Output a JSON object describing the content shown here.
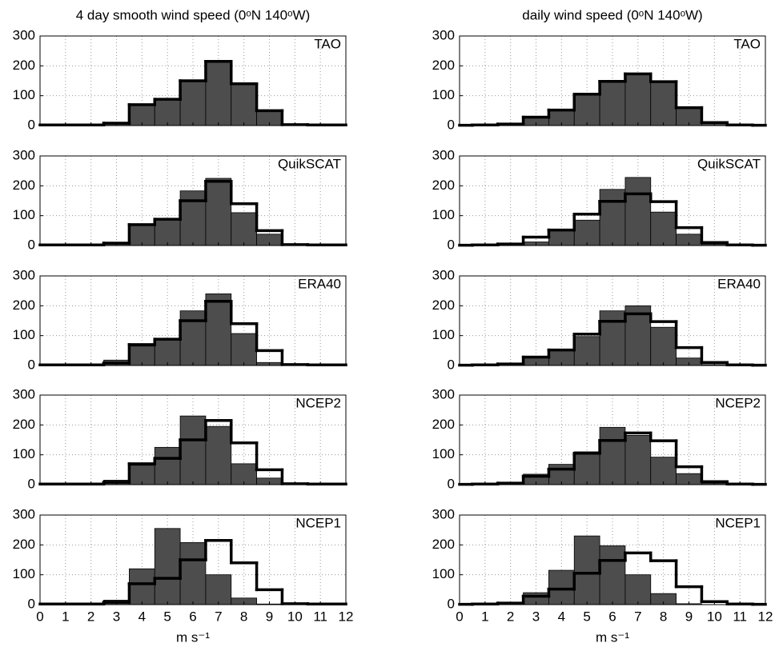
{
  "chart_data": [
    {
      "type": "histogram",
      "title": "4 day smooth wind speed (0ᵒN 140ᵒW)",
      "label": "TAO",
      "bins": [
        0,
        0.5,
        1.5,
        2.5,
        3.5,
        4.5,
        5.5,
        6.5,
        7.5,
        8.5,
        9.5,
        10.5,
        11.5,
        12
      ],
      "series": [
        {
          "style": "fill",
          "color": "#4d4d4d",
          "values": [
            2,
            2,
            2,
            8,
            70,
            88,
            150,
            215,
            140,
            50,
            3,
            2,
            2
          ]
        },
        {
          "style": "step",
          "color": "#000000",
          "values": [
            2,
            2,
            2,
            8,
            70,
            88,
            150,
            215,
            140,
            50,
            3,
            2,
            2
          ]
        }
      ],
      "xlim": [
        0,
        12
      ],
      "ylim": [
        0,
        300
      ],
      "xticks": [
        0,
        1,
        2,
        3,
        4,
        5,
        6,
        7,
        8,
        9,
        10,
        11,
        12
      ],
      "yticks": [
        0,
        100,
        200,
        300
      ],
      "grid": true,
      "xtick_labels": false
    },
    {
      "type": "histogram",
      "title": "daily wind speed (0ᵒN 140ᵒW)",
      "label": "TAO",
      "bins": [
        0,
        0.5,
        1.5,
        2.5,
        3.5,
        4.5,
        5.5,
        6.5,
        7.5,
        8.5,
        9.5,
        10.5,
        11.5,
        12
      ],
      "series": [
        {
          "style": "fill",
          "color": "#4d4d4d",
          "values": [
            1,
            2,
            5,
            28,
            52,
            105,
            148,
            173,
            147,
            60,
            10,
            2,
            1
          ]
        },
        {
          "style": "step",
          "color": "#000000",
          "values": [
            1,
            2,
            5,
            28,
            52,
            105,
            148,
            173,
            147,
            60,
            10,
            2,
            1
          ]
        }
      ],
      "xlim": [
        0,
        12
      ],
      "ylim": [
        0,
        300
      ],
      "xticks": [
        0,
        1,
        2,
        3,
        4,
        5,
        6,
        7,
        8,
        9,
        10,
        11,
        12
      ],
      "yticks": [
        0,
        100,
        200,
        300
      ],
      "grid": true,
      "xtick_labels": false
    },
    {
      "type": "histogram",
      "label": "QuikSCAT",
      "bins": [
        0,
        0.5,
        1.5,
        2.5,
        3.5,
        4.5,
        5.5,
        6.5,
        7.5,
        8.5,
        9.5,
        10.5,
        11.5,
        12
      ],
      "series": [
        {
          "style": "fill",
          "color": "#4d4d4d",
          "values": [
            2,
            2,
            2,
            5,
            70,
            88,
            183,
            225,
            110,
            38,
            2,
            1,
            1
          ]
        },
        {
          "style": "step",
          "color": "#000000",
          "values": [
            2,
            2,
            2,
            8,
            70,
            88,
            150,
            215,
            140,
            50,
            3,
            2,
            2
          ]
        }
      ],
      "xlim": [
        0,
        12
      ],
      "ylim": [
        0,
        300
      ],
      "xticks": [
        0,
        1,
        2,
        3,
        4,
        5,
        6,
        7,
        8,
        9,
        10,
        11,
        12
      ],
      "yticks": [
        0,
        100,
        200,
        300
      ],
      "grid": true,
      "xtick_labels": false
    },
    {
      "type": "histogram",
      "label": "QuikSCAT",
      "bins": [
        0,
        0.5,
        1.5,
        2.5,
        3.5,
        4.5,
        5.5,
        6.5,
        7.5,
        8.5,
        9.5,
        10.5,
        11.5,
        12
      ],
      "series": [
        {
          "style": "fill",
          "color": "#4d4d4d",
          "values": [
            0,
            1,
            3,
            12,
            50,
            85,
            188,
            228,
            112,
            38,
            4,
            1,
            0
          ]
        },
        {
          "style": "step",
          "color": "#000000",
          "values": [
            1,
            2,
            5,
            28,
            52,
            105,
            148,
            173,
            147,
            60,
            10,
            2,
            1
          ]
        }
      ],
      "xlim": [
        0,
        12
      ],
      "ylim": [
        0,
        300
      ],
      "xticks": [
        0,
        1,
        2,
        3,
        4,
        5,
        6,
        7,
        8,
        9,
        10,
        11,
        12
      ],
      "yticks": [
        0,
        100,
        200,
        300
      ],
      "grid": true,
      "xtick_labels": false
    },
    {
      "type": "histogram",
      "label": "ERA40",
      "bins": [
        0,
        0.5,
        1.5,
        2.5,
        3.5,
        4.5,
        5.5,
        6.5,
        7.5,
        8.5,
        9.5,
        10.5,
        11.5,
        12
      ],
      "series": [
        {
          "style": "fill",
          "color": "#4d4d4d",
          "values": [
            1,
            1,
            1,
            18,
            65,
            88,
            183,
            240,
            107,
            10,
            1,
            1,
            1
          ]
        },
        {
          "style": "step",
          "color": "#000000",
          "values": [
            2,
            2,
            2,
            8,
            70,
            88,
            150,
            215,
            140,
            50,
            3,
            2,
            2
          ]
        }
      ],
      "xlim": [
        0,
        12
      ],
      "ylim": [
        0,
        300
      ],
      "xticks": [
        0,
        1,
        2,
        3,
        4,
        5,
        6,
        7,
        8,
        9,
        10,
        11,
        12
      ],
      "yticks": [
        0,
        100,
        200,
        300
      ],
      "grid": true,
      "xtick_labels": false
    },
    {
      "type": "histogram",
      "label": "ERA40",
      "bins": [
        0,
        0.5,
        1.5,
        2.5,
        3.5,
        4.5,
        5.5,
        6.5,
        7.5,
        8.5,
        9.5,
        10.5,
        11.5,
        12
      ],
      "series": [
        {
          "style": "fill",
          "color": "#4d4d4d",
          "values": [
            1,
            1,
            5,
            30,
            52,
            97,
            183,
            200,
            128,
            25,
            3,
            1,
            0
          ]
        },
        {
          "style": "step",
          "color": "#000000",
          "values": [
            1,
            2,
            5,
            28,
            52,
            105,
            148,
            173,
            147,
            60,
            10,
            2,
            1
          ]
        }
      ],
      "xlim": [
        0,
        12
      ],
      "ylim": [
        0,
        300
      ],
      "xticks": [
        0,
        1,
        2,
        3,
        4,
        5,
        6,
        7,
        8,
        9,
        10,
        11,
        12
      ],
      "yticks": [
        0,
        100,
        200,
        300
      ],
      "grid": true,
      "xtick_labels": false
    },
    {
      "type": "histogram",
      "label": "NCEP2",
      "bins": [
        0,
        0.5,
        1.5,
        2.5,
        3.5,
        4.5,
        5.5,
        6.5,
        7.5,
        8.5,
        9.5,
        10.5,
        11.5,
        12
      ],
      "series": [
        {
          "style": "fill",
          "color": "#4d4d4d",
          "values": [
            2,
            2,
            2,
            15,
            65,
            125,
            230,
            195,
            70,
            22,
            2,
            1,
            1
          ]
        },
        {
          "style": "step",
          "color": "#000000",
          "values": [
            2,
            2,
            2,
            8,
            70,
            88,
            150,
            215,
            140,
            50,
            3,
            2,
            2
          ]
        }
      ],
      "xlim": [
        0,
        12
      ],
      "ylim": [
        0,
        300
      ],
      "xticks": [
        0,
        1,
        2,
        3,
        4,
        5,
        6,
        7,
        8,
        9,
        10,
        11,
        12
      ],
      "yticks": [
        0,
        100,
        200,
        300
      ],
      "grid": true,
      "xtick_labels": false
    },
    {
      "type": "histogram",
      "label": "NCEP2",
      "bins": [
        0,
        0.5,
        1.5,
        2.5,
        3.5,
        4.5,
        5.5,
        6.5,
        7.5,
        8.5,
        9.5,
        10.5,
        11.5,
        12
      ],
      "series": [
        {
          "style": "fill",
          "color": "#4d4d4d",
          "values": [
            0,
            1,
            8,
            35,
            68,
            110,
            192,
            165,
            92,
            37,
            4,
            1,
            0
          ]
        },
        {
          "style": "step",
          "color": "#000000",
          "values": [
            1,
            2,
            5,
            28,
            52,
            105,
            148,
            173,
            147,
            60,
            10,
            2,
            1
          ]
        }
      ],
      "xlim": [
        0,
        12
      ],
      "ylim": [
        0,
        300
      ],
      "xticks": [
        0,
        1,
        2,
        3,
        4,
        5,
        6,
        7,
        8,
        9,
        10,
        11,
        12
      ],
      "yticks": [
        0,
        100,
        200,
        300
      ],
      "grid": true,
      "xtick_labels": false
    },
    {
      "type": "histogram",
      "label": "NCEP1",
      "xlabel": "m s⁻¹",
      "bins": [
        0,
        0.5,
        1.5,
        2.5,
        3.5,
        4.5,
        5.5,
        6.5,
        7.5,
        8.5,
        9.5,
        10.5,
        11.5,
        12
      ],
      "series": [
        {
          "style": "fill",
          "color": "#4d4d4d",
          "values": [
            1,
            1,
            1,
            15,
            120,
            255,
            208,
            100,
            22,
            2,
            0,
            0,
            0
          ]
        },
        {
          "style": "step",
          "color": "#000000",
          "values": [
            2,
            2,
            2,
            8,
            70,
            88,
            150,
            215,
            140,
            50,
            3,
            2,
            2
          ]
        }
      ],
      "xlim": [
        0,
        12
      ],
      "ylim": [
        0,
        300
      ],
      "xticks": [
        0,
        1,
        2,
        3,
        4,
        5,
        6,
        7,
        8,
        9,
        10,
        11,
        12
      ],
      "yticks": [
        0,
        100,
        200,
        300
      ],
      "grid": true,
      "xtick_labels": true
    },
    {
      "type": "histogram",
      "label": "NCEP1",
      "xlabel": "m s⁻¹",
      "bins": [
        0,
        0.5,
        1.5,
        2.5,
        3.5,
        4.5,
        5.5,
        6.5,
        7.5,
        8.5,
        9.5,
        10.5,
        11.5,
        12
      ],
      "series": [
        {
          "style": "fill",
          "color": "#4d4d4d",
          "values": [
            1,
            1,
            5,
            40,
            115,
            230,
            197,
            100,
            37,
            3,
            0,
            0,
            0
          ]
        },
        {
          "style": "step",
          "color": "#000000",
          "values": [
            1,
            2,
            5,
            28,
            52,
            105,
            148,
            173,
            147,
            60,
            10,
            2,
            1
          ]
        }
      ],
      "xlim": [
        0,
        12
      ],
      "ylim": [
        0,
        300
      ],
      "xticks": [
        0,
        1,
        2,
        3,
        4,
        5,
        6,
        7,
        8,
        9,
        10,
        11,
        12
      ],
      "yticks": [
        0,
        100,
        200,
        300
      ],
      "grid": true,
      "xtick_labels": true
    }
  ]
}
